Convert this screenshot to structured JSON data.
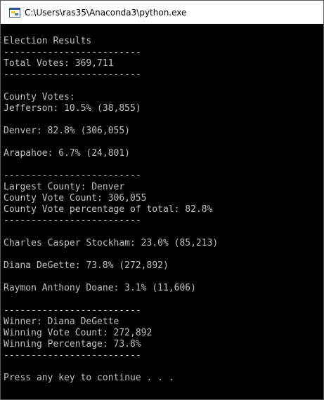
{
  "window": {
    "title": "C:\\Users\\ras35\\Anaconda3\\python.exe",
    "icon": "python-icon",
    "colors": {
      "background": "#000000",
      "text": "#c0c0c0",
      "titlebar": "#ffffff"
    }
  },
  "console": {
    "lines": [
      "Election Results",
      "-------------------------",
      "Total Votes: 369,711",
      "-------------------------",
      "",
      "County Votes:",
      "Jefferson: 10.5% (38,855)",
      "",
      "Denver: 82.8% (306,055)",
      "",
      "Arapahoe: 6.7% (24,801)",
      "",
      "-------------------------",
      "Largest County: Denver",
      "County Vote Count: 306,055",
      "County Vote percentage of total: 82.8%",
      "-------------------------",
      "",
      "Charles Casper Stockham: 23.0% (85,213)",
      "",
      "Diana DeGette: 73.8% (272,892)",
      "",
      "Raymon Anthony Doane: 3.1% (11,606)",
      "",
      "-------------------------",
      "Winner: Diana DeGette",
      "Winning Vote Count: 272,892",
      "Winning Percentage: 73.8%",
      "-------------------------",
      "",
      "Press any key to continue . . ."
    ]
  }
}
